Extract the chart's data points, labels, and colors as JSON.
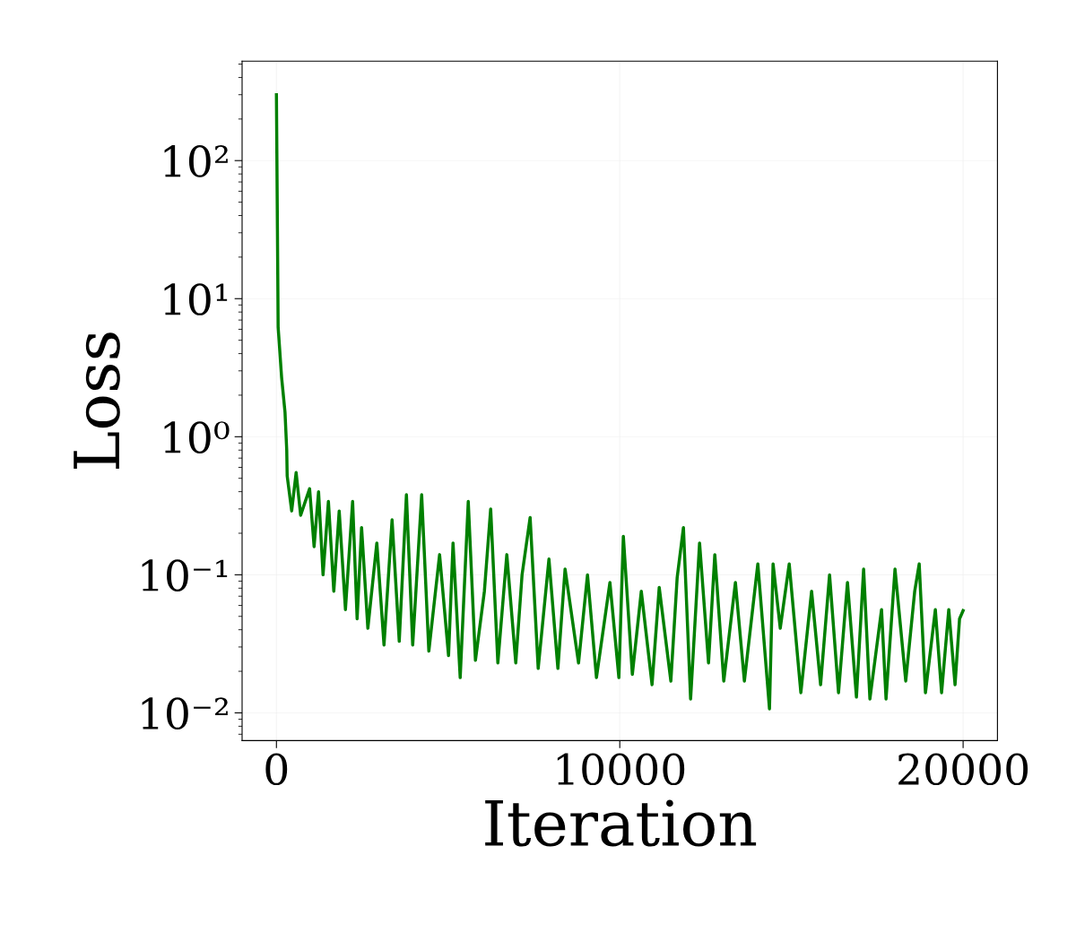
{
  "chart_data": {
    "type": "line",
    "xlabel": "Iteration",
    "ylabel": "Loss",
    "log": "y",
    "grid": true,
    "xlim": [
      -1000,
      21000
    ],
    "xticks": [
      0,
      10000,
      20000
    ],
    "ylim": [
      0.0063,
      525
    ],
    "yticks": [
      {
        "value": 0.01,
        "label": "10⁻²"
      },
      {
        "value": 0.1,
        "label": "10⁻¹"
      },
      {
        "value": 1,
        "label": "10⁰"
      },
      {
        "value": 10,
        "label": "10¹"
      },
      {
        "value": 100,
        "label": "10²"
      }
    ],
    "series": [
      {
        "color": "#008000",
        "line_style": "solid",
        "marker": "none",
        "x": [
          0,
          50,
          150,
          250,
          300,
          313,
          444,
          574,
          705,
          966,
          1097,
          1227,
          1358,
          1514,
          1671,
          1828,
          2010,
          2219,
          2350,
          2480,
          2663,
          2924,
          3133,
          3368,
          3577,
          3786,
          3969,
          4230,
          4439,
          4752,
          5013,
          5144,
          5352,
          5587,
          5796,
          6057,
          6240,
          6449,
          6710,
          6971,
          7154,
          7389,
          7624,
          7937,
          8198,
          8407,
          8799,
          9060,
          9321,
          9713,
          9974,
          10104,
          10366,
          10627,
          10940,
          11149,
          11488,
          11671,
          11854,
          12063,
          12324,
          12585,
          12768,
          13029,
          13368,
          13629,
          14021,
          14360,
          14465,
          14674,
          14935,
          15274,
          15587,
          15849,
          16110,
          16371,
          16632,
          16893,
          17102,
          17285,
          17624,
          17755,
          18016,
          18329,
          18590,
          18721,
          18903,
          19191,
          19373,
          19582,
          19765,
          19896,
          20000
        ],
        "values": [
          300,
          6.2,
          2.7,
          1.5,
          0.8,
          0.52,
          0.29,
          0.55,
          0.27,
          0.42,
          0.16,
          0.4,
          0.1,
          0.34,
          0.076,
          0.29,
          0.056,
          0.34,
          0.048,
          0.22,
          0.041,
          0.17,
          0.031,
          0.25,
          0.033,
          0.38,
          0.031,
          0.38,
          0.028,
          0.14,
          0.026,
          0.17,
          0.018,
          0.34,
          0.024,
          0.076,
          0.3,
          0.023,
          0.14,
          0.023,
          0.1,
          0.26,
          0.021,
          0.13,
          0.021,
          0.11,
          0.023,
          0.1,
          0.018,
          0.088,
          0.018,
          0.19,
          0.019,
          0.076,
          0.016,
          0.081,
          0.017,
          0.095,
          0.22,
          0.0126,
          0.17,
          0.023,
          0.14,
          0.017,
          0.088,
          0.017,
          0.12,
          0.0107,
          0.12,
          0.041,
          0.12,
          0.014,
          0.076,
          0.016,
          0.1,
          0.014,
          0.088,
          0.013,
          0.11,
          0.0126,
          0.056,
          0.0126,
          0.11,
          0.017,
          0.076,
          0.12,
          0.014,
          0.056,
          0.014,
          0.056,
          0.016,
          0.048,
          0.055
        ]
      }
    ]
  }
}
